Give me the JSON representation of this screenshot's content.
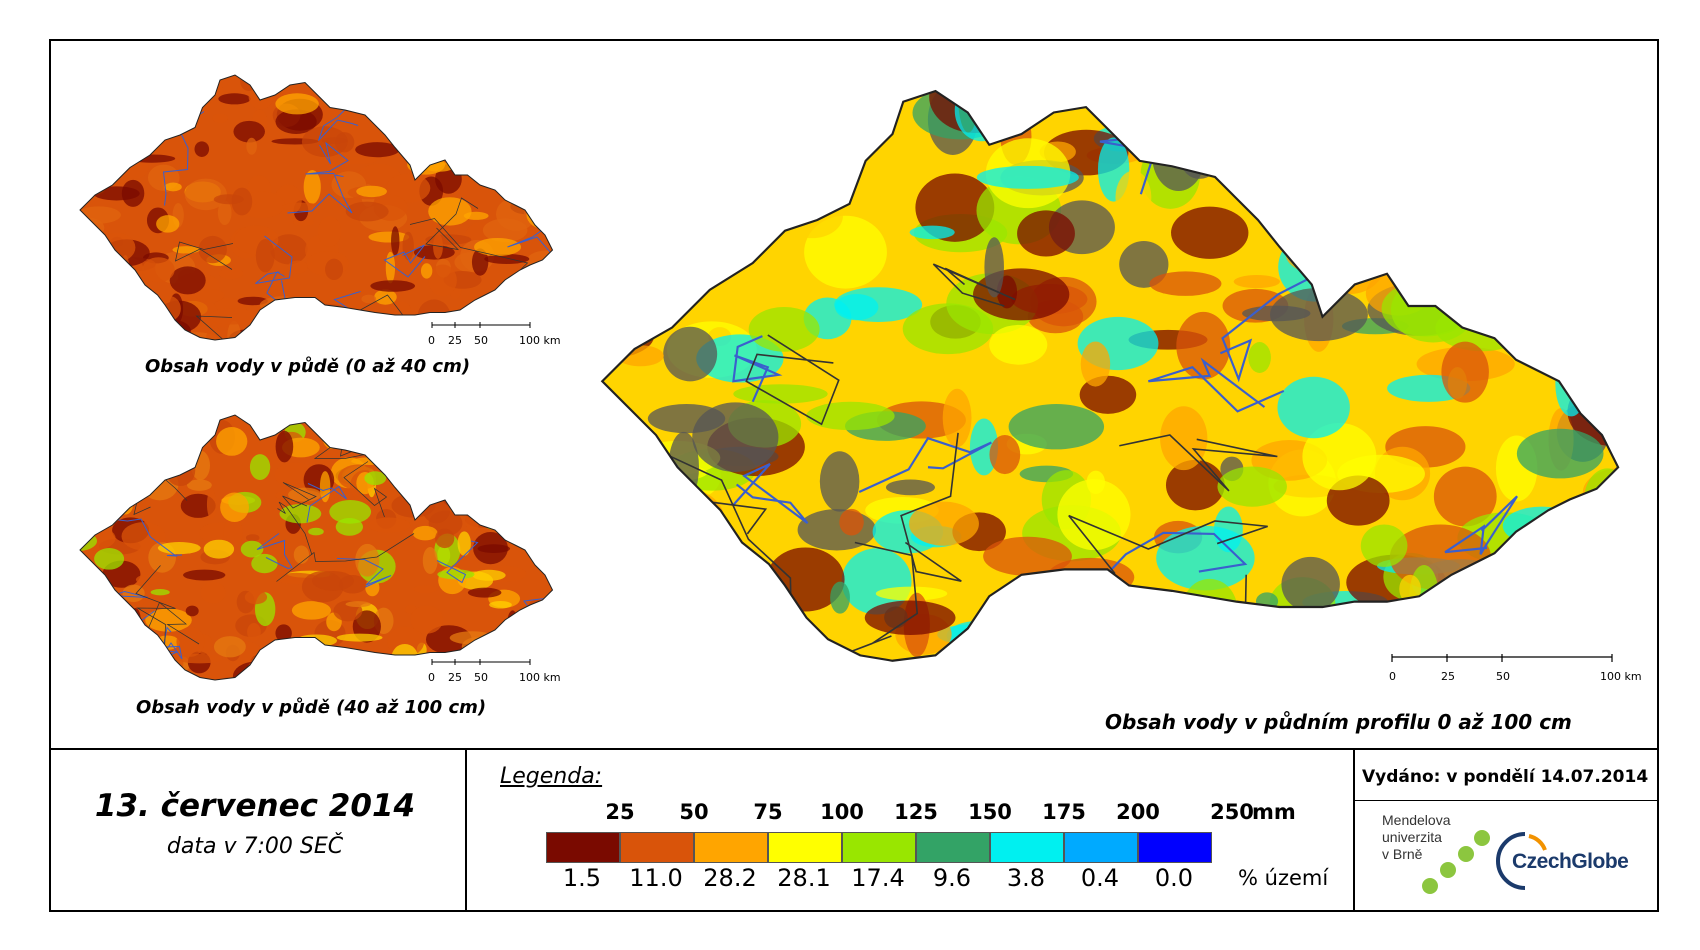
{
  "maps": [
    {
      "caption": "Obsah vody v půdě (0 až 40 cm)",
      "base_color": "#d9540a"
    },
    {
      "caption": "Obsah vody v půdě (40 až 100 cm)",
      "base_color": "#d9540a"
    },
    {
      "caption": "Obsah vody v půdním profilu 0 až 100 cm",
      "base_color": "#ffd400"
    }
  ],
  "scale_labels": [
    "0",
    "25",
    "50",
    "100 km"
  ],
  "date": {
    "title": "13. červenec 2014",
    "subtitle": "data v 7:00 SEČ"
  },
  "legend": {
    "title": "Legenda:",
    "unit": "mm",
    "pct_unit": "% území",
    "thresholds": [
      "25",
      "50",
      "75",
      "100",
      "125",
      "150",
      "175",
      "200",
      "250"
    ],
    "classes": [
      {
        "color": "#7a0a00",
        "pct": "1.5"
      },
      {
        "color": "#d9540a",
        "pct": "11.0"
      },
      {
        "color": "#ffa500",
        "pct": "28.2"
      },
      {
        "color": "#ffff00",
        "pct": "28.1"
      },
      {
        "color": "#99e600",
        "pct": "17.4"
      },
      {
        "color": "#33a366",
        "pct": "9.6"
      },
      {
        "color": "#00f0f0",
        "pct": "3.8"
      },
      {
        "color": "#00aaff",
        "pct": "0.4"
      },
      {
        "color": "#0000ff",
        "pct": "0.0"
      }
    ]
  },
  "issued": "Vydáno: v pondělí 14.07.2014",
  "logos": {
    "mendel_lines": [
      "Mendelova",
      "univerzita",
      "v Brně"
    ],
    "czechglobe": "CzechGlobe"
  }
}
